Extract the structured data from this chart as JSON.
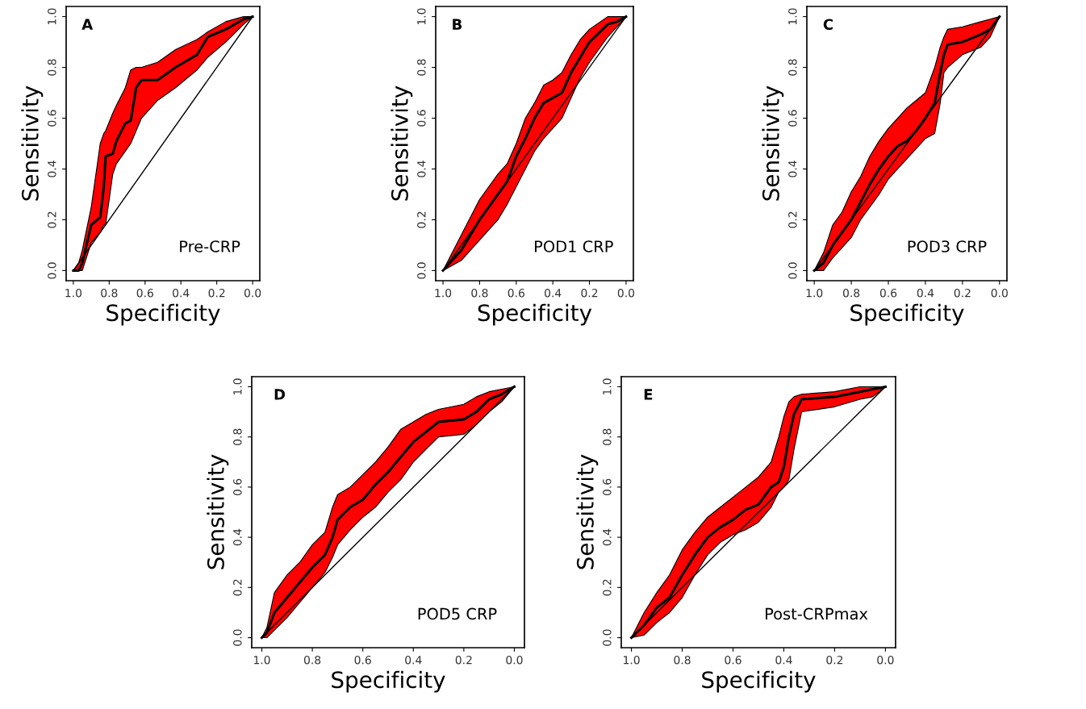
{
  "chart_data": [
    {
      "type": "line",
      "xlabel": "Specificity",
      "ylabel": "Sensitivity",
      "annotations": [
        "A",
        "Pre-CRP"
      ],
      "xlim": [
        1.04,
        -0.04
      ],
      "ylim": [
        -0.04,
        1.04
      ],
      "xticks": [
        {
          "value": 1,
          "label": "1.0"
        },
        {
          "value": 0.8,
          "label": "0.8"
        },
        {
          "value": 0.6,
          "label": "0.6"
        },
        {
          "value": 0.4,
          "label": "0.4"
        },
        {
          "value": 0.2,
          "label": "0.2"
        },
        {
          "value": 0,
          "label": "0.0"
        }
      ],
      "yticks": [
        {
          "value": 0,
          "label": "0.0"
        },
        {
          "value": 0.2,
          "label": "0.2"
        },
        {
          "value": 0.4,
          "label": "0.4"
        },
        {
          "value": 0.6,
          "label": "0.6"
        },
        {
          "value": 0.8,
          "label": "0.8"
        },
        {
          "value": 1,
          "label": "1.0"
        }
      ],
      "series": [
        {
          "color": "#000000",
          "x": [
            1,
            0.97,
            0.95,
            0.9,
            0.85,
            0.83,
            0.82,
            0.78,
            0.76,
            0.71,
            0.68,
            0.65,
            0.62,
            0.53,
            0.43,
            0.31,
            0.25,
            0.15,
            0.05,
            0
          ],
          "values": [
            0,
            0,
            0.03,
            0.18,
            0.21,
            0.33,
            0.45,
            0.46,
            0.51,
            0.58,
            0.59,
            0.72,
            0.75,
            0.75,
            0.8,
            0.85,
            0.92,
            0.95,
            0.99,
            1
          ],
          "upper": [
            0,
            0.03,
            0.08,
            0.25,
            0.5,
            0.54,
            0.55,
            0.62,
            0.65,
            0.72,
            0.79,
            0.8,
            0.8,
            0.82,
            0.87,
            0.91,
            0.94,
            0.98,
            1,
            1
          ],
          "lower": [
            0,
            0,
            0,
            0.11,
            0.15,
            0.18,
            0.18,
            0.38,
            0.42,
            0.47,
            0.5,
            0.55,
            0.6,
            0.67,
            0.72,
            0.79,
            0.84,
            0.9,
            0.97,
            1
          ]
        },
        {
          "type": "line",
          "color": "#000000",
          "x": [
            1,
            0
          ],
          "values": [
            0,
            1
          ]
        }
      ]
    },
    {
      "type": "line",
      "xlabel": "Specificity",
      "ylabel": "Sensitivity",
      "annotations": [
        "B",
        "POD1 CRP"
      ],
      "xlim": [
        1.04,
        -0.04
      ],
      "ylim": [
        -0.04,
        1.04
      ],
      "xticks": [
        {
          "value": 1,
          "label": "1.0"
        },
        {
          "value": 0.8,
          "label": "0.8"
        },
        {
          "value": 0.6,
          "label": "0.6"
        },
        {
          "value": 0.4,
          "label": "0.4"
        },
        {
          "value": 0.2,
          "label": "0.2"
        },
        {
          "value": 0,
          "label": "0.0"
        }
      ],
      "yticks": [
        {
          "value": 0,
          "label": "0.0"
        },
        {
          "value": 0.2,
          "label": "0.2"
        },
        {
          "value": 0.4,
          "label": "0.4"
        },
        {
          "value": 0.6,
          "label": "0.6"
        },
        {
          "value": 0.8,
          "label": "0.8"
        },
        {
          "value": 1,
          "label": "1.0"
        }
      ],
      "series": [
        {
          "color": "#000000",
          "x": [
            1,
            0.9,
            0.8,
            0.7,
            0.65,
            0.6,
            0.55,
            0.5,
            0.45,
            0.4,
            0.35,
            0.3,
            0.25,
            0.2,
            0.1,
            0.05,
            0
          ],
          "values": [
            0,
            0.08,
            0.2,
            0.3,
            0.35,
            0.45,
            0.52,
            0.6,
            0.66,
            0.68,
            0.7,
            0.78,
            0.84,
            0.9,
            0.97,
            0.98,
            1
          ],
          "upper": [
            0,
            0.14,
            0.28,
            0.38,
            0.42,
            0.5,
            0.6,
            0.66,
            0.73,
            0.75,
            0.78,
            0.85,
            0.91,
            0.95,
            1,
            1,
            1
          ],
          "lower": [
            0,
            0.04,
            0.12,
            0.2,
            0.26,
            0.33,
            0.4,
            0.47,
            0.52,
            0.56,
            0.6,
            0.68,
            0.76,
            0.82,
            0.92,
            0.96,
            1
          ]
        },
        {
          "type": "line",
          "color": "#000000",
          "x": [
            1,
            0
          ],
          "values": [
            0,
            1
          ]
        }
      ]
    },
    {
      "type": "line",
      "xlabel": "Specificity",
      "ylabel": "Sensitivity",
      "annotations": [
        "C",
        "POD3 CRP"
      ],
      "xlim": [
        1.04,
        -0.04
      ],
      "ylim": [
        -0.04,
        1.04
      ],
      "xticks": [
        {
          "value": 1,
          "label": "1.0"
        },
        {
          "value": 0.8,
          "label": "0.8"
        },
        {
          "value": 0.6,
          "label": "0.6"
        },
        {
          "value": 0.4,
          "label": "0.4"
        },
        {
          "value": 0.2,
          "label": "0.2"
        },
        {
          "value": 0,
          "label": "0.0"
        }
      ],
      "yticks": [
        {
          "value": 0,
          "label": "0.0"
        },
        {
          "value": 0.2,
          "label": "0.2"
        },
        {
          "value": 0.4,
          "label": "0.4"
        },
        {
          "value": 0.6,
          "label": "0.6"
        },
        {
          "value": 0.8,
          "label": "0.8"
        },
        {
          "value": 1,
          "label": "1.0"
        }
      ],
      "series": [
        {
          "color": "#000000",
          "x": [
            1,
            0.95,
            0.9,
            0.85,
            0.8,
            0.75,
            0.7,
            0.65,
            0.6,
            0.55,
            0.5,
            0.45,
            0.4,
            0.35,
            0.32,
            0.3,
            0.28,
            0.2,
            0.1,
            0.05,
            0
          ],
          "values": [
            0,
            0.03,
            0.1,
            0.15,
            0.2,
            0.27,
            0.34,
            0.4,
            0.45,
            0.49,
            0.51,
            0.55,
            0.6,
            0.66,
            0.78,
            0.85,
            0.89,
            0.9,
            0.93,
            0.95,
            1
          ],
          "upper": [
            0,
            0.07,
            0.18,
            0.23,
            0.31,
            0.37,
            0.45,
            0.51,
            0.56,
            0.6,
            0.64,
            0.67,
            0.7,
            0.8,
            0.88,
            0.92,
            0.95,
            0.96,
            0.98,
            0.99,
            1
          ],
          "lower": [
            0,
            0,
            0.05,
            0.09,
            0.13,
            0.2,
            0.25,
            0.3,
            0.36,
            0.4,
            0.44,
            0.48,
            0.52,
            0.54,
            0.66,
            0.78,
            0.8,
            0.85,
            0.88,
            0.92,
            1
          ]
        },
        {
          "type": "line",
          "color": "#000000",
          "x": [
            1,
            0
          ],
          "values": [
            0,
            1
          ]
        }
      ]
    },
    {
      "type": "line",
      "xlabel": "Specificity",
      "ylabel": "Sensitivity",
      "annotations": [
        "D",
        "POD5 CRP"
      ],
      "xlim": [
        1.04,
        -0.04
      ],
      "ylim": [
        -0.04,
        1.04
      ],
      "xticks": [
        {
          "value": 1,
          "label": "1.0"
        },
        {
          "value": 0.8,
          "label": "0.8"
        },
        {
          "value": 0.6,
          "label": "0.6"
        },
        {
          "value": 0.4,
          "label": "0.4"
        },
        {
          "value": 0.2,
          "label": "0.2"
        },
        {
          "value": 0,
          "label": "0.0"
        }
      ],
      "yticks": [
        {
          "value": 0,
          "label": "0.0"
        },
        {
          "value": 0.2,
          "label": "0.2"
        },
        {
          "value": 0.4,
          "label": "0.4"
        },
        {
          "value": 0.6,
          "label": "0.6"
        },
        {
          "value": 0.8,
          "label": "0.8"
        },
        {
          "value": 1,
          "label": "1.0"
        }
      ],
      "series": [
        {
          "color": "#000000",
          "x": [
            1,
            0.98,
            0.95,
            0.9,
            0.85,
            0.8,
            0.75,
            0.72,
            0.7,
            0.65,
            0.6,
            0.55,
            0.5,
            0.45,
            0.4,
            0.35,
            0.3,
            0.2,
            0.15,
            0.1,
            0.05,
            0
          ],
          "values": [
            0,
            0.02,
            0.1,
            0.16,
            0.22,
            0.28,
            0.33,
            0.4,
            0.47,
            0.52,
            0.55,
            0.61,
            0.66,
            0.72,
            0.78,
            0.82,
            0.86,
            0.87,
            0.9,
            0.95,
            0.97,
            1
          ],
          "upper": [
            0,
            0.04,
            0.18,
            0.25,
            0.3,
            0.37,
            0.42,
            0.52,
            0.57,
            0.6,
            0.65,
            0.7,
            0.76,
            0.83,
            0.86,
            0.89,
            0.91,
            0.93,
            0.96,
            0.98,
            0.99,
            1
          ],
          "lower": [
            0,
            0,
            0.03,
            0.08,
            0.14,
            0.2,
            0.26,
            0.32,
            0.37,
            0.43,
            0.48,
            0.52,
            0.58,
            0.63,
            0.7,
            0.75,
            0.8,
            0.81,
            0.85,
            0.9,
            0.94,
            1
          ]
        },
        {
          "type": "line",
          "color": "#000000",
          "x": [
            1,
            0
          ],
          "values": [
            0,
            1
          ]
        }
      ]
    },
    {
      "type": "line",
      "xlabel": "Specificity",
      "ylabel": "Sensitivity",
      "annotations": [
        "E",
        "Post-CRPmax"
      ],
      "xlim": [
        1.04,
        -0.04
      ],
      "ylim": [
        -0.04,
        1.04
      ],
      "xticks": [
        {
          "value": 1,
          "label": "1.0"
        },
        {
          "value": 0.8,
          "label": "0.8"
        },
        {
          "value": 0.6,
          "label": "0.6"
        },
        {
          "value": 0.4,
          "label": "0.4"
        },
        {
          "value": 0.2,
          "label": "0.2"
        },
        {
          "value": 0,
          "label": "0.0"
        }
      ],
      "yticks": [
        {
          "value": 0,
          "label": "0.0"
        },
        {
          "value": 0.2,
          "label": "0.2"
        },
        {
          "value": 0.4,
          "label": "0.4"
        },
        {
          "value": 0.6,
          "label": "0.6"
        },
        {
          "value": 0.8,
          "label": "0.8"
        },
        {
          "value": 1,
          "label": "1.0"
        }
      ],
      "series": [
        {
          "color": "#000000",
          "x": [
            1,
            0.95,
            0.9,
            0.85,
            0.8,
            0.75,
            0.7,
            0.65,
            0.6,
            0.55,
            0.5,
            0.45,
            0.42,
            0.4,
            0.38,
            0.36,
            0.33,
            0.2,
            0.1,
            0.05,
            0
          ],
          "values": [
            0,
            0.05,
            0.12,
            0.16,
            0.25,
            0.33,
            0.4,
            0.44,
            0.47,
            0.51,
            0.53,
            0.6,
            0.62,
            0.68,
            0.8,
            0.89,
            0.95,
            0.96,
            0.98,
            0.99,
            1
          ],
          "upper": [
            0,
            0.1,
            0.18,
            0.25,
            0.35,
            0.42,
            0.48,
            0.52,
            0.56,
            0.6,
            0.64,
            0.7,
            0.8,
            0.88,
            0.94,
            0.96,
            0.97,
            0.98,
            1,
            1,
            1
          ],
          "lower": [
            0,
            0.01,
            0.06,
            0.1,
            0.16,
            0.25,
            0.33,
            0.38,
            0.41,
            0.43,
            0.46,
            0.52,
            0.58,
            0.6,
            0.63,
            0.75,
            0.9,
            0.92,
            0.95,
            0.96,
            1
          ]
        },
        {
          "type": "line",
          "color": "#000000",
          "x": [
            1,
            0
          ],
          "values": [
            0,
            1
          ]
        }
      ]
    }
  ]
}
